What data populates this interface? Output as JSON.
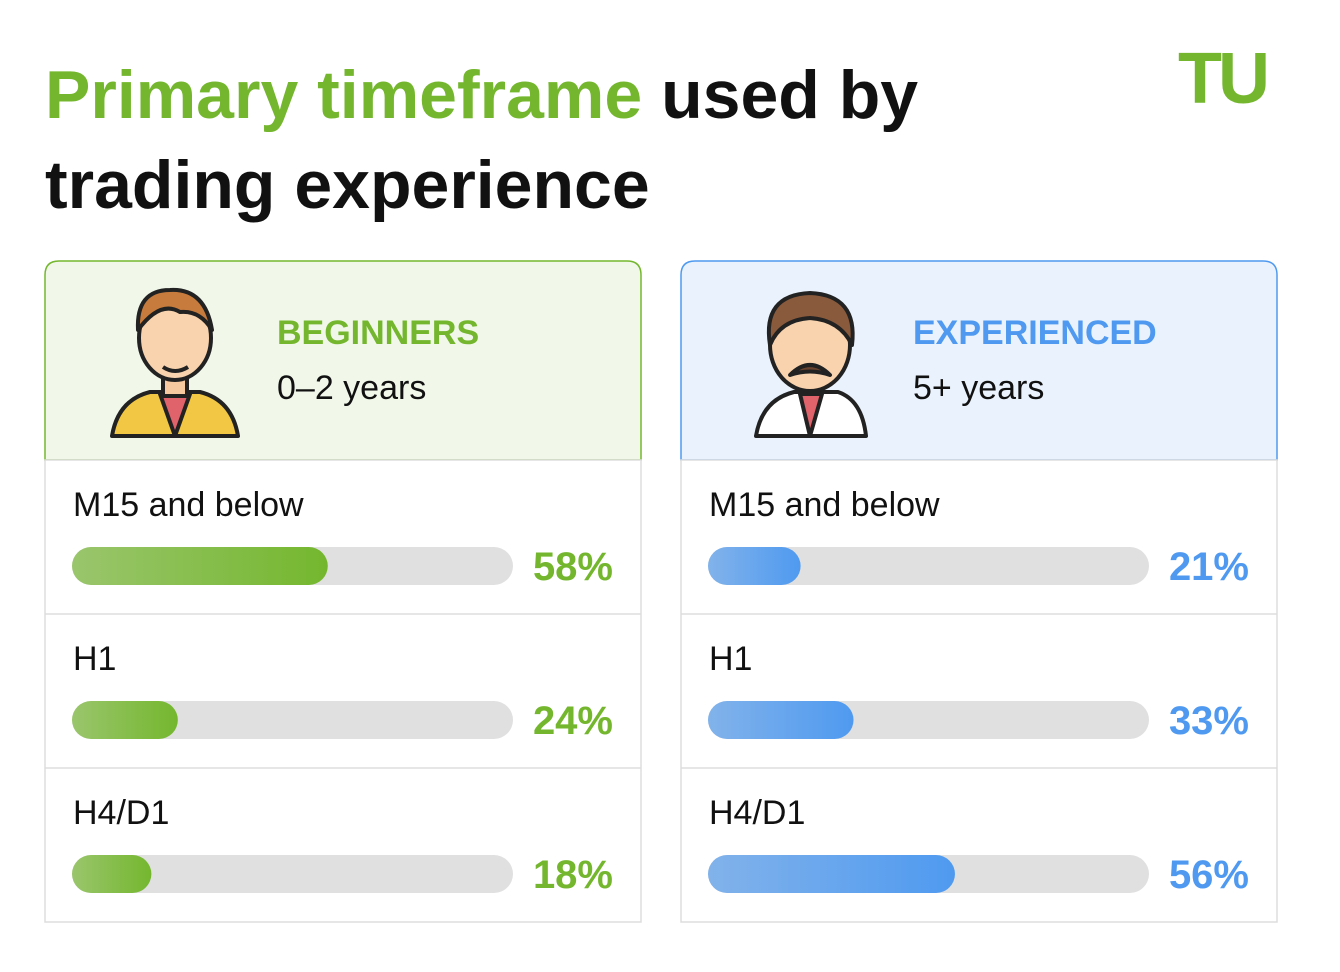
{
  "title": {
    "highlight": "Primary timeframe",
    "rest": [
      "used by",
      "trading experience"
    ]
  },
  "logo": "TU",
  "chart_data": [
    {
      "type": "bar",
      "title": "BEGINNERS",
      "subtitle": "0–2 years",
      "color": "#74b72e",
      "categories": [
        "M15 and below",
        "H1",
        "H4/D1"
      ],
      "values": [
        58,
        24,
        18
      ],
      "value_labels": [
        "58%",
        "24%",
        "18%"
      ],
      "xlim": [
        0,
        100
      ]
    },
    {
      "type": "bar",
      "title": "EXPERIENCED",
      "subtitle": "5+ years",
      "color": "#4f9af0",
      "categories": [
        "M15 and below",
        "H1",
        "H4/D1"
      ],
      "values": [
        21,
        33,
        56
      ],
      "value_labels": [
        "21%",
        "33%",
        "56%"
      ],
      "xlim": [
        0,
        100
      ]
    }
  ]
}
